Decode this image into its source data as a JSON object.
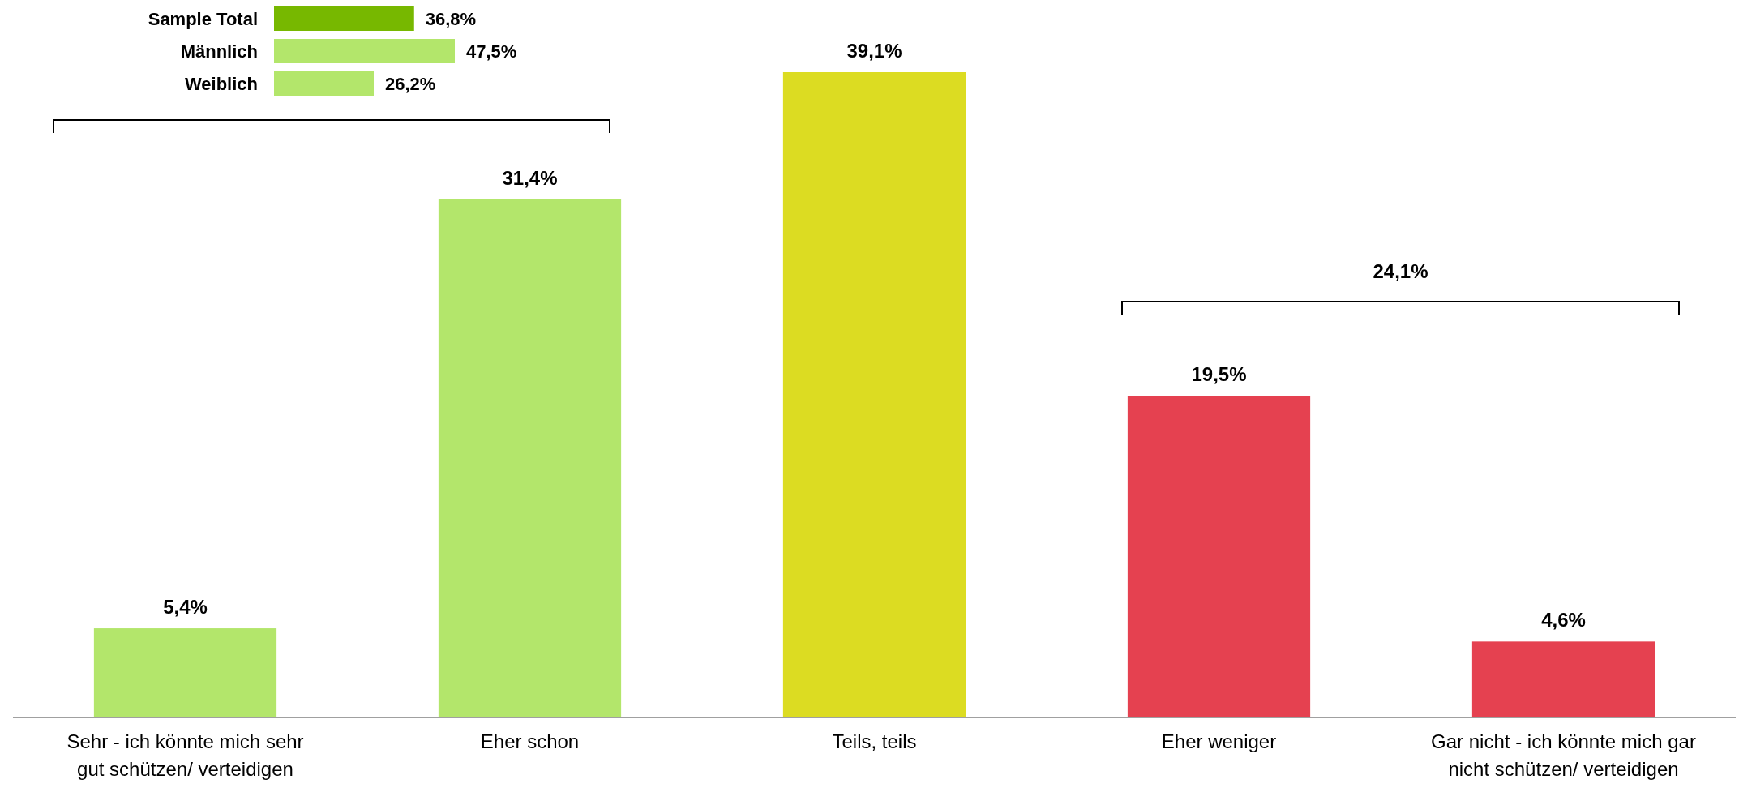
{
  "chart_data": [
    {
      "type": "bar",
      "orientation": "horizontal",
      "categories": [
        "Sample Total",
        "Männlich",
        "Weiblich"
      ],
      "values": [
        36.8,
        47.5,
        26.2
      ],
      "colors": [
        "#77b800",
        "#b3e66b",
        "#b3e66b"
      ],
      "value_labels": [
        "36,8%",
        "47,5%",
        "26,2%"
      ]
    },
    {
      "type": "bar",
      "categories": [
        "Sehr - ich könnte mich sehr gut schützen/ verteidigen",
        "Eher schon",
        "Teils, teils",
        "Eher weniger",
        "Gar nicht - ich könnte mich gar nicht schützen/ verteidigen"
      ],
      "values": [
        5.4,
        31.4,
        39.1,
        19.5,
        4.6
      ],
      "colors": [
        "#b3e66b",
        "#b3e66b",
        "#dcdc22",
        "#e54150",
        "#e54150"
      ],
      "value_labels": [
        "5,4%",
        "31,4%",
        "39,1%",
        "19,5%",
        "4,6%"
      ],
      "annotations": [
        "24,1%"
      ]
    }
  ]
}
